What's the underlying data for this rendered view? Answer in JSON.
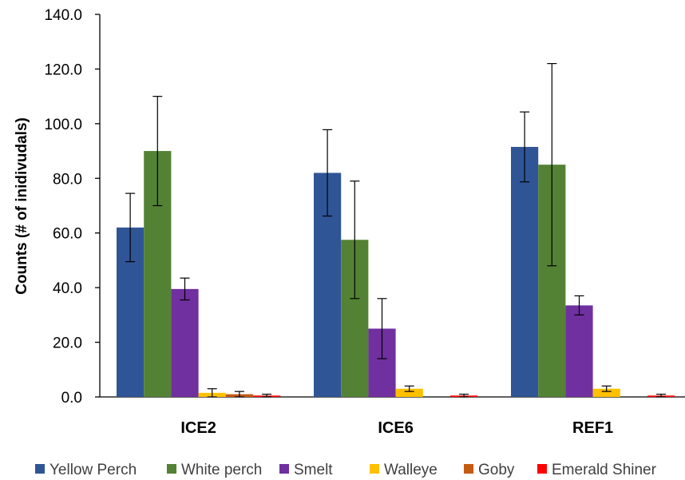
{
  "chart_data": {
    "type": "bar",
    "ylabel": "Counts (# of inidivudals)",
    "ylim": [
      0,
      140
    ],
    "yticks": [
      "0.0",
      "20.0",
      "40.0",
      "60.0",
      "80.0",
      "100.0",
      "120.0",
      "140.0"
    ],
    "grid": false,
    "legend_position": "bottom",
    "categories": [
      "ICE2",
      "ICE6",
      "REF1"
    ],
    "series": [
      {
        "name": "Yellow Perch",
        "color": "#2F5597",
        "values": [
          62.0,
          82.0,
          91.5
        ],
        "errors": [
          12.5,
          15.8,
          12.8
        ]
      },
      {
        "name": "White perch",
        "color": "#548235",
        "values": [
          90.0,
          57.5,
          85.0
        ],
        "errors": [
          20.0,
          21.5,
          37.0
        ]
      },
      {
        "name": "Smelt",
        "color": "#7030A0",
        "values": [
          39.5,
          25.0,
          33.5
        ],
        "errors": [
          4.0,
          11.0,
          3.5
        ]
      },
      {
        "name": "Walleye",
        "color": "#FFC000",
        "values": [
          1.5,
          3.0,
          3.0
        ],
        "errors": [
          1.5,
          1.0,
          1.0
        ]
      },
      {
        "name": "Goby",
        "color": "#C55A11",
        "values": [
          1.0,
          0.0,
          0.0
        ],
        "errors": [
          1.0,
          0.0,
          0.0
        ]
      },
      {
        "name": "Emerald Shiner",
        "color": "#FF0000",
        "values": [
          0.5,
          0.5,
          0.5
        ],
        "errors": [
          0.5,
          0.5,
          0.5
        ]
      }
    ]
  }
}
